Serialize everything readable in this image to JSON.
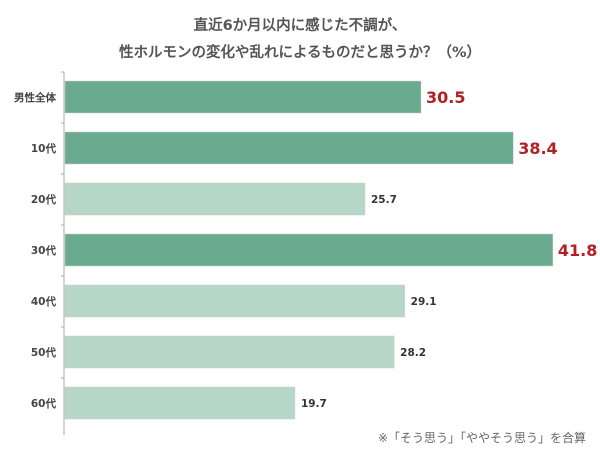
{
  "chart_data": {
    "type": "bar",
    "orientation": "horizontal",
    "title": [
      "直近6か月以内に感じた不調が、",
      "性ホルモンの変化や乱れによるものだと思うか？（%）"
    ],
    "categories": [
      "男性全体",
      "10代",
      "20代",
      "30代",
      "40代",
      "50代",
      "60代"
    ],
    "values": [
      30.5,
      38.4,
      25.7,
      41.8,
      29.1,
      28.2,
      19.7
    ],
    "highlighted": [
      true,
      true,
      false,
      true,
      false,
      false,
      false
    ],
    "value_labels": [
      "30.5",
      "38.4",
      "25.7",
      "41.8",
      "29.1",
      "28.2",
      "19.7"
    ],
    "xlim": [
      0,
      46
    ],
    "xlabel": "",
    "ylabel": "",
    "grid": false,
    "note": "※「そう思う」「ややそう思う」を合算",
    "colors": {
      "highlight": "#6aab8f",
      "normal": "#b6d7c7",
      "highlight_label": "#b21f24",
      "label": "#333333"
    }
  }
}
